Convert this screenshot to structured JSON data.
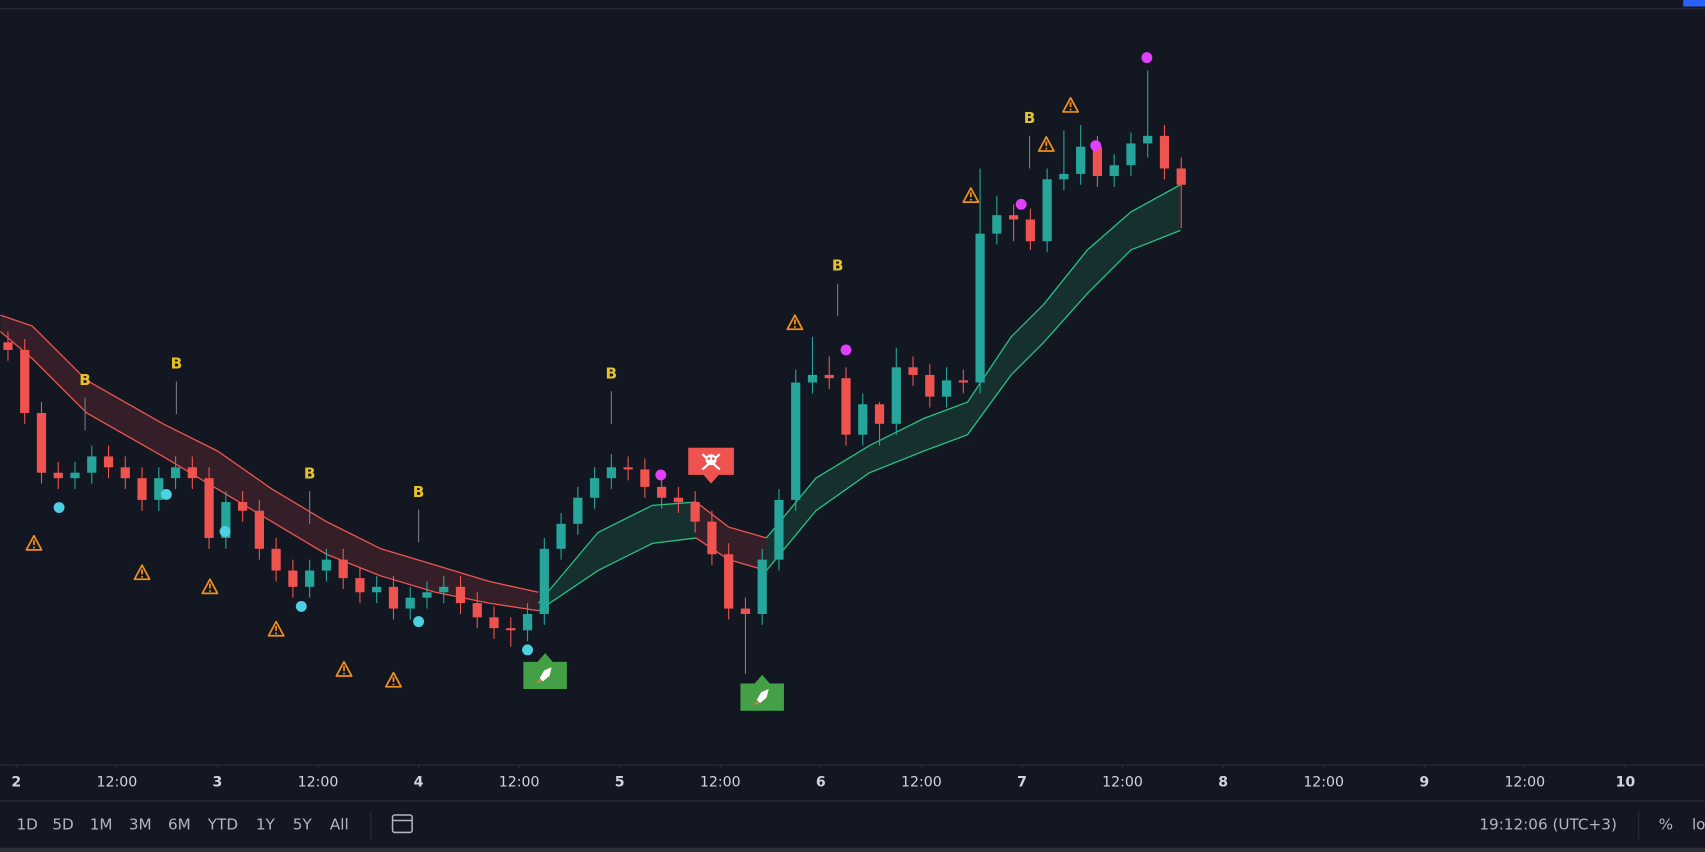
{
  "chart_data": {
    "type": "candlestick",
    "x": [
      -1,
      1,
      3,
      5,
      7,
      9,
      11,
      13,
      15,
      17,
      19,
      21,
      23,
      25,
      27,
      29,
      31,
      33,
      35,
      37,
      39,
      41,
      43,
      45,
      47,
      49,
      51,
      53,
      55,
      57,
      59,
      61,
      63,
      65,
      67,
      69,
      71,
      73,
      75,
      77,
      79,
      81,
      83,
      85,
      87,
      89,
      91,
      93,
      95,
      97,
      99,
      101,
      103,
      105,
      107,
      109,
      111,
      113,
      115,
      117,
      119,
      121,
      123,
      125,
      127,
      129,
      131,
      133,
      135,
      137,
      139
    ],
    "open": [
      385,
      378,
      320,
      265,
      260,
      265,
      280,
      270,
      260,
      240,
      260,
      270,
      260,
      205,
      238,
      230,
      195,
      175,
      160,
      175,
      185,
      168,
      155,
      160,
      140,
      150,
      155,
      160,
      145,
      132,
      122,
      120,
      135,
      195,
      218,
      242,
      260,
      270,
      268,
      252,
      242,
      238,
      220,
      190,
      140,
      135,
      185,
      240,
      348,
      355,
      352,
      300,
      328,
      310,
      362,
      355,
      335,
      350,
      348,
      485,
      502,
      498,
      478,
      535,
      540,
      565,
      538,
      548,
      568,
      575,
      545
    ],
    "high": [
      395,
      388,
      330,
      275,
      275,
      290,
      290,
      280,
      270,
      270,
      280,
      280,
      270,
      248,
      248,
      240,
      205,
      185,
      185,
      195,
      195,
      178,
      170,
      170,
      160,
      165,
      170,
      170,
      155,
      142,
      132,
      145,
      205,
      228,
      252,
      270,
      282,
      280,
      278,
      262,
      252,
      248,
      230,
      200,
      150,
      195,
      250,
      360,
      390,
      372,
      362,
      338,
      330,
      380,
      372,
      365,
      362,
      360,
      545,
      520,
      512,
      508,
      545,
      580,
      585,
      575,
      558,
      578,
      635,
      585,
      555
    ],
    "low": [
      368,
      310,
      255,
      250,
      250,
      255,
      260,
      250,
      230,
      230,
      250,
      250,
      195,
      195,
      220,
      185,
      165,
      150,
      150,
      165,
      158,
      145,
      145,
      130,
      130,
      140,
      145,
      135,
      122,
      112,
      105,
      110,
      125,
      185,
      208,
      232,
      250,
      258,
      242,
      232,
      228,
      210,
      180,
      130,
      80,
      125,
      175,
      230,
      338,
      342,
      290,
      290,
      290,
      300,
      345,
      325,
      325,
      338,
      338,
      475,
      478,
      470,
      468,
      525,
      530,
      528,
      528,
      538,
      555,
      535,
      490
    ],
    "close": [
      378,
      320,
      265,
      260,
      265,
      280,
      270,
      260,
      240,
      260,
      270,
      260,
      205,
      238,
      230,
      195,
      175,
      160,
      175,
      185,
      168,
      155,
      160,
      140,
      150,
      155,
      160,
      145,
      132,
      122,
      120,
      135,
      195,
      218,
      242,
      260,
      270,
      268,
      252,
      242,
      238,
      220,
      190,
      140,
      135,
      185,
      240,
      348,
      355,
      352,
      300,
      328,
      310,
      362,
      355,
      335,
      350,
      348,
      485,
      502,
      498,
      478,
      535,
      540,
      565,
      538,
      548,
      568,
      575,
      545,
      530
    ],
    "up_color": "#26a69a",
    "down_color": "#ef5350",
    "xlim": [
      -1.95,
      201.5
    ],
    "ylim": [
      -3,
      692
    ],
    "xticks": [
      {
        "value": 0,
        "label": "2"
      },
      {
        "value": 12,
        "label": "12:00"
      },
      {
        "value": 24,
        "label": "3"
      },
      {
        "value": 36,
        "label": "12:00"
      },
      {
        "value": 48,
        "label": "4"
      },
      {
        "value": 60,
        "label": "12:00"
      },
      {
        "value": 72,
        "label": "5"
      },
      {
        "value": 84,
        "label": "12:00"
      },
      {
        "value": 96,
        "label": "6"
      },
      {
        "value": 108,
        "label": "12:00"
      },
      {
        "value": 120,
        "label": "7"
      },
      {
        "value": 132,
        "label": "12:00"
      },
      {
        "value": 144,
        "label": "8"
      },
      {
        "value": 156,
        "label": "12:00"
      },
      {
        "value": 168,
        "label": "9"
      },
      {
        "value": 180,
        "label": "12:00"
      },
      {
        "value": 192,
        "label": "10"
      }
    ],
    "bands": [
      {
        "color": "#ef5350",
        "x": [
          -1.9,
          1.9,
          8.4,
          17.5,
          24,
          30.5,
          37,
          43.5,
          50,
          56.4,
          62.3
        ],
        "upper": [
          410,
          400,
          350,
          310,
          285,
          250,
          220,
          195,
          180,
          165,
          155
        ],
        "lower": [
          395,
          370,
          320,
          280,
          250,
          220,
          190,
          170,
          155,
          145,
          138
        ]
      },
      {
        "color": "#26c281",
        "x": [
          62.3,
          69.4,
          75.9,
          81.1
        ],
        "upper": [
          145,
          210,
          235,
          238
        ],
        "lower": [
          138,
          175,
          200,
          205
        ]
      },
      {
        "color": "#ef5350",
        "x": [
          81.1,
          85,
          89.5
        ],
        "upper": [
          238,
          215,
          205
        ],
        "lower": [
          205,
          185,
          175
        ]
      },
      {
        "color": "#26c281",
        "x": [
          89.5,
          95.4,
          101.8,
          108.3,
          113.5,
          118.7,
          122.6,
          127.8,
          133,
          138.9
        ],
        "upper": [
          205,
          260,
          290,
          315,
          330,
          390,
          420,
          470,
          505,
          530
        ],
        "lower": [
          175,
          230,
          265,
          285,
          300,
          355,
          385,
          430,
          470,
          488
        ]
      }
    ],
    "b_signals": {
      "label": "B",
      "x": [
        8.2,
        19.1,
        35,
        48,
        71,
        98,
        120.9
      ],
      "y": [
        350,
        365,
        264,
        247,
        356,
        455,
        591
      ]
    },
    "warning_marks": {
      "x": [
        2.1,
        15,
        23.1,
        31,
        39.1,
        45,
        92.9,
        113.9,
        122.9,
        125.8
      ],
      "y": [
        200,
        173,
        160,
        121,
        84,
        74,
        403,
        520,
        567,
        603
      ]
    },
    "cyan_dots": {
      "x": [
        5.1,
        17.9,
        24.9,
        34,
        48,
        61
      ],
      "y": [
        233,
        245,
        211,
        142,
        128,
        102
      ]
    },
    "magenta_dots": {
      "x": [
        76.9,
        99,
        119.9,
        128.8,
        134.9
      ],
      "y": [
        263,
        378,
        512,
        566,
        647
      ]
    },
    "rocket_marks": {
      "x": [
        63.1,
        89
      ],
      "y": [
        79,
        59
      ]
    },
    "skull_marks": {
      "x": [
        82.9
      ],
      "y": [
        275
      ]
    }
  },
  "toolbar": {
    "ranges": [
      "1D",
      "5D",
      "1M",
      "3M",
      "6M",
      "YTD",
      "1Y",
      "5Y",
      "All"
    ],
    "clock": "19:12:06 (UTC+3)",
    "percent": "%",
    "log": "lo"
  }
}
